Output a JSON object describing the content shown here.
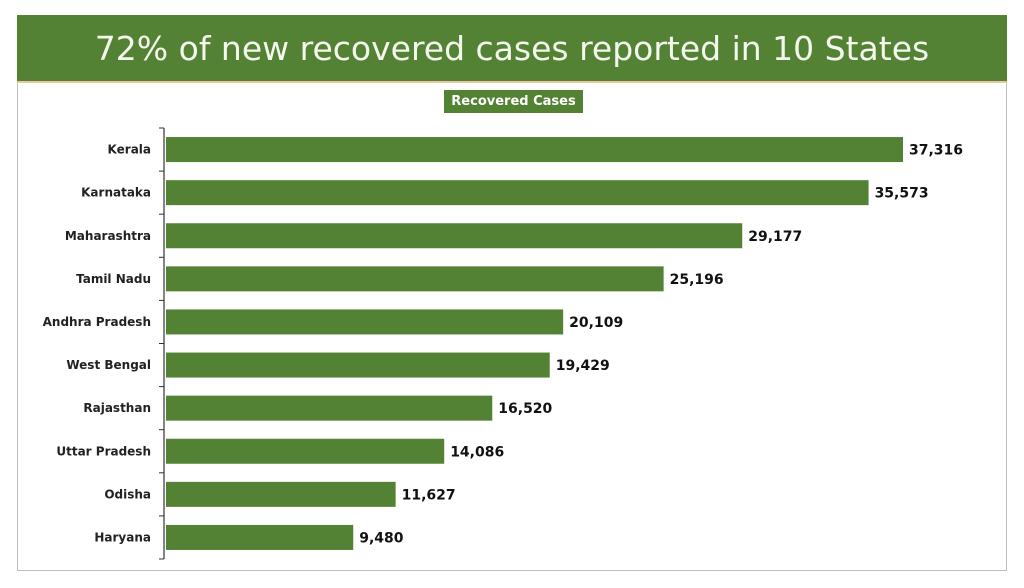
{
  "chart_data": {
    "type": "bar",
    "orientation": "horizontal",
    "title": "72% of new recovered cases reported in 10 States",
    "legend": "Recovered Cases",
    "legend_placement": "top-center",
    "categories": [
      "Kerala",
      "Karnataka",
      "Maharashtra",
      "Tamil Nadu",
      "Andhra Pradesh",
      "West Bengal",
      "Rajasthan",
      "Uttar Pradesh",
      "Odisha",
      "Haryana"
    ],
    "values": [
      37316,
      35573,
      29177,
      25196,
      20109,
      19429,
      16520,
      14086,
      11627,
      9480
    ],
    "value_labels": [
      "37,316",
      "35,573",
      "29,177",
      "25,196",
      "20,109",
      "19,429",
      "16,520",
      "14,086",
      "11,627",
      "9,480"
    ],
    "grid": false,
    "colors": {
      "bar": "#548235",
      "banner": "#548235"
    }
  }
}
